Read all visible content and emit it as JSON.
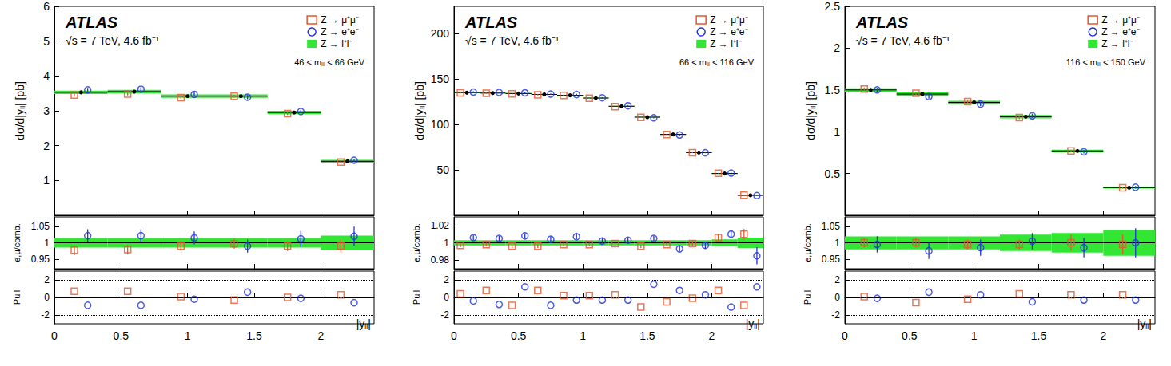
{
  "chart_data": [
    {
      "type": "scatter",
      "title": "ATLAS",
      "subtitle": "√s = 7 TeV, 4.6 fb⁻¹",
      "annotations": [
        "46 < mₗₗ < 66 GeV"
      ],
      "ylabel": "dσ/d|yₗₗ| [pb]",
      "legend": "upper right",
      "tick_labels": "y",
      "grid": false,
      "xlim": [
        0,
        2.4
      ],
      "xticks": [
        0,
        0.5,
        1,
        1.5,
        2
      ],
      "ylim": [
        0,
        6
      ],
      "yticks": [
        1,
        2,
        3,
        4,
        5,
        6
      ],
      "series": [
        {
          "name": "Z → μ⁺μ⁻",
          "color": "#e4572e",
          "marker": "square",
          "x": [
            0.15,
            0.55,
            0.95,
            1.35,
            1.75,
            2.15
          ],
          "values": [
            3.45,
            3.48,
            3.38,
            3.42,
            2.92,
            1.53
          ],
          "errors": [
            0.04,
            0.04,
            0.04,
            0.04,
            0.04,
            0.03
          ]
        },
        {
          "name": "Z → e⁺e⁻",
          "color": "#2233dd",
          "marker": "circle",
          "x": [
            0.25,
            0.65,
            1.05,
            1.45,
            1.85,
            2.25
          ],
          "values": [
            3.6,
            3.62,
            3.47,
            3.39,
            2.98,
            1.58
          ],
          "errors": [
            0.06,
            0.06,
            0.06,
            0.06,
            0.05,
            0.04
          ]
        },
        {
          "name": "Z → l⁺l⁻",
          "color": "#33e633",
          "marker": "dot",
          "bins": [
            0,
            0.4,
            0.8,
            1.2,
            1.6,
            2.0,
            2.4
          ],
          "values": [
            3.53,
            3.55,
            3.42,
            3.42,
            2.95,
            1.55
          ],
          "errors": [
            0.05,
            0.05,
            0.05,
            0.05,
            0.05,
            0.04
          ]
        }
      ]
    },
    {
      "type": "scatter",
      "ylabel": "e,μ/comb.",
      "tick_labels": "y",
      "grid": false,
      "xlim": [
        0,
        2.4
      ],
      "xticks": [
        0,
        0.5,
        1,
        1.5,
        2
      ],
      "ylim": [
        0.92,
        1.08
      ],
      "yticks": [
        0.95,
        1,
        1.05
      ],
      "series": [
        {
          "name": "Z → l⁺l⁻",
          "color": "#33e633",
          "marker": "band",
          "bins": [
            0,
            0.4,
            0.8,
            1.2,
            1.6,
            2.0,
            2.4
          ],
          "values": [
            1,
            1,
            1,
            1,
            1,
            1
          ],
          "errors": [
            0.015,
            0.015,
            0.015,
            0.015,
            0.015,
            0.022
          ]
        },
        {
          "name": "Z → μ⁺μ⁻",
          "color": "#e4572e",
          "marker": "square",
          "x": [
            0.15,
            0.55,
            0.95,
            1.35,
            1.75,
            2.15
          ],
          "values": [
            0.977,
            0.979,
            0.99,
            0.997,
            0.99,
            0.99
          ],
          "errors": [
            0.015,
            0.015,
            0.015,
            0.015,
            0.015,
            0.02
          ]
        },
        {
          "name": "Z → e⁺e⁻",
          "color": "#2233dd",
          "marker": "circle",
          "x": [
            0.25,
            0.65,
            1.05,
            1.45,
            1.85,
            2.25
          ],
          "values": [
            1.022,
            1.022,
            1.015,
            0.99,
            1.012,
            1.02
          ],
          "errors": [
            0.02,
            0.02,
            0.02,
            0.02,
            0.025,
            0.03
          ]
        }
      ]
    },
    {
      "type": "scatter",
      "ylabel": "Pull",
      "xlabel": "|yₗₗ|",
      "tick_labels": true,
      "grid": true,
      "xlim": [
        0,
        2.4
      ],
      "xticks": [
        0,
        0.5,
        1,
        1.5,
        2
      ],
      "ylim": [
        -3,
        3
      ],
      "yticks": [
        -2,
        0,
        2
      ],
      "series": [
        {
          "name": "Z → μ⁺μ⁻",
          "color": "#e4572e",
          "marker": "square",
          "x": [
            0.15,
            0.55,
            0.95,
            1.35,
            1.75,
            2.15
          ],
          "values": [
            0.7,
            0.7,
            0.1,
            -0.3,
            0.0,
            0.3
          ]
        },
        {
          "name": "Z → e⁺e⁻",
          "color": "#2233dd",
          "marker": "circle",
          "x": [
            0.25,
            0.65,
            1.05,
            1.45,
            1.85,
            2.25
          ],
          "values": [
            -0.9,
            -0.9,
            -0.2,
            0.6,
            -0.1,
            -0.6
          ]
        }
      ]
    },
    {
      "type": "scatter",
      "title": "ATLAS",
      "subtitle": "√s = 7 TeV, 4.6 fb⁻¹",
      "annotations": [
        "66 < mₗₗ < 116 GeV"
      ],
      "ylabel": "dσ/d|yₗₗ| [pb]",
      "legend": "upper right",
      "tick_labels": "y",
      "grid": false,
      "xlim": [
        0,
        2.4
      ],
      "xticks": [
        0,
        0.5,
        1,
        1.5,
        2
      ],
      "ylim": [
        0,
        230
      ],
      "yticks": [
        50,
        100,
        150,
        200
      ],
      "series": [
        {
          "name": "Z → μ⁺μ⁻",
          "color": "#e4572e",
          "marker": "square",
          "x": [
            0.05,
            0.25,
            0.45,
            0.65,
            0.85,
            1.05,
            1.25,
            1.45,
            1.65,
            1.85,
            2.05,
            2.25
          ],
          "values": [
            134.7,
            134.3,
            133.6,
            132.6,
            131.8,
            128.8,
            119.6,
            107.8,
            88.9,
            68.9,
            46.3,
            22.2
          ],
          "errors": [
            0.7,
            0.7,
            0.7,
            0.7,
            0.7,
            0.7,
            0.6,
            0.6,
            0.5,
            0.4,
            0.3,
            0.3
          ]
        },
        {
          "name": "Z → e⁺e⁻",
          "color": "#2233dd",
          "marker": "circle",
          "x": [
            0.15,
            0.35,
            0.55,
            0.75,
            0.95,
            1.15,
            1.35,
            1.55,
            1.75,
            1.95,
            2.15,
            2.35
          ],
          "values": [
            135.6,
            135.2,
            134.8,
            133.4,
            132.9,
            129.3,
            120.5,
            107.3,
            88.4,
            68.8,
            46.5,
            21.7
          ],
          "errors": [
            0.8,
            0.8,
            0.8,
            0.8,
            0.8,
            0.8,
            0.7,
            0.7,
            0.6,
            0.5,
            0.4,
            0.3
          ]
        },
        {
          "name": "Z → l⁺l⁻",
          "color": "#33e633",
          "marker": "dot",
          "bins": [
            0,
            0.2,
            0.4,
            0.6,
            0.8,
            1.0,
            1.2,
            1.4,
            1.6,
            1.8,
            2.0,
            2.2,
            2.4
          ],
          "values": [
            135,
            134.5,
            134,
            133,
            132,
            129,
            120,
            108,
            89,
            69,
            46,
            22
          ],
          "errors": [
            0.5,
            0.5,
            0.5,
            0.5,
            0.5,
            0.5,
            0.5,
            0.4,
            0.4,
            0.3,
            0.3,
            0.2
          ]
        }
      ]
    },
    {
      "type": "scatter",
      "ylabel": "e,μ/comb.",
      "tick_labels": "y",
      "grid": false,
      "xlim": [
        0,
        2.4
      ],
      "xticks": [
        0,
        0.5,
        1,
        1.5,
        2
      ],
      "ylim": [
        0.97,
        1.03
      ],
      "yticks": [
        0.98,
        1,
        1.02
      ],
      "series": [
        {
          "name": "Z → l⁺l⁻",
          "color": "#33e633",
          "marker": "band",
          "bins": [
            0,
            0.2,
            0.4,
            0.6,
            0.8,
            1.0,
            1.2,
            1.4,
            1.6,
            1.8,
            2.0,
            2.2,
            2.4
          ],
          "values": [
            1,
            1,
            1,
            1,
            1,
            1,
            1,
            1,
            1,
            1,
            1,
            1
          ],
          "errors": [
            0.003,
            0.003,
            0.003,
            0.003,
            0.003,
            0.003,
            0.003,
            0.003,
            0.003,
            0.003,
            0.004,
            0.006
          ]
        },
        {
          "name": "Z → μ⁺μ⁻",
          "color": "#e4572e",
          "marker": "square",
          "x": [
            0.05,
            0.25,
            0.45,
            0.65,
            0.85,
            1.05,
            1.25,
            1.45,
            1.65,
            1.85,
            2.05,
            2.25
          ],
          "values": [
            0.997,
            0.998,
            0.996,
            0.996,
            0.998,
            0.998,
            0.999,
            0.996,
            0.998,
            0.999,
            1.006,
            1.01
          ],
          "errors": [
            0.002,
            0.002,
            0.002,
            0.002,
            0.002,
            0.002,
            0.002,
            0.002,
            0.002,
            0.003,
            0.004,
            0.006
          ]
        },
        {
          "name": "Z → e⁺e⁻",
          "color": "#2233dd",
          "marker": "circle",
          "x": [
            0.15,
            0.35,
            0.55,
            0.75,
            0.95,
            1.15,
            1.35,
            1.55,
            1.75,
            1.95,
            2.15,
            2.35
          ],
          "values": [
            1.006,
            1.005,
            1.008,
            1.004,
            1.007,
            1.002,
            1.003,
            1.005,
            0.993,
            0.997,
            1.01,
            0.985
          ],
          "errors": [
            0.003,
            0.003,
            0.003,
            0.003,
            0.003,
            0.003,
            0.003,
            0.003,
            0.003,
            0.004,
            0.005,
            0.01
          ]
        }
      ]
    },
    {
      "type": "scatter",
      "ylabel": "Pull",
      "xlabel": "|yₗₗ|",
      "tick_labels": true,
      "grid": true,
      "xlim": [
        0,
        2.4
      ],
      "xticks": [
        0,
        0.5,
        1,
        1.5,
        2
      ],
      "ylim": [
        -3,
        3
      ],
      "yticks": [
        -2,
        0,
        2
      ],
      "series": [
        {
          "name": "Z → μ⁺μ⁻",
          "color": "#e4572e",
          "marker": "square",
          "x": [
            0.05,
            0.25,
            0.45,
            0.65,
            0.85,
            1.05,
            1.25,
            1.45,
            1.65,
            1.85,
            2.05,
            2.25
          ],
          "values": [
            0.4,
            0.8,
            -0.9,
            0.8,
            0.2,
            0.2,
            0.3,
            -1.1,
            -0.5,
            -0.1,
            0.8,
            -0.9
          ]
        },
        {
          "name": "Z → e⁺e⁻",
          "color": "#2233dd",
          "marker": "circle",
          "x": [
            0.15,
            0.35,
            0.55,
            0.75,
            0.95,
            1.15,
            1.35,
            1.55,
            1.75,
            1.95,
            2.15,
            2.35
          ],
          "values": [
            -0.4,
            -0.8,
            1.2,
            -0.9,
            -0.3,
            -0.3,
            -0.3,
            1.5,
            0.8,
            0.3,
            -1.1,
            1.2
          ]
        }
      ]
    },
    {
      "type": "scatter",
      "title": "ATLAS",
      "subtitle": "√s = 7 TeV, 4.6 fb⁻¹",
      "annotations": [
        "116 < mₗₗ < 150 GeV"
      ],
      "ylabel": "dσ/d|yₗₗ| [pb]",
      "legend": "upper right",
      "tick_labels": "y",
      "grid": false,
      "xlim": [
        0,
        2.4
      ],
      "xticks": [
        0,
        0.5,
        1,
        1.5,
        2
      ],
      "ylim": [
        0,
        2.5
      ],
      "yticks": [
        0.5,
        1,
        1.5,
        2,
        2.5
      ],
      "series": [
        {
          "name": "Z → μ⁺μ⁻",
          "color": "#e4572e",
          "marker": "square",
          "x": [
            0.15,
            0.55,
            0.95,
            1.35,
            1.75,
            2.15
          ],
          "values": [
            1.51,
            1.46,
            1.36,
            1.17,
            0.77,
            0.33
          ],
          "errors": [
            0.02,
            0.02,
            0.02,
            0.02,
            0.015,
            0.01
          ]
        },
        {
          "name": "Z → e⁺e⁻",
          "color": "#2233dd",
          "marker": "circle",
          "x": [
            0.25,
            0.65,
            1.05,
            1.45,
            1.85,
            2.25
          ],
          "values": [
            1.5,
            1.42,
            1.33,
            1.19,
            0.76,
            0.335
          ],
          "errors": [
            0.025,
            0.025,
            0.025,
            0.025,
            0.02,
            0.015
          ]
        },
        {
          "name": "Z → l⁺l⁻",
          "color": "#33e633",
          "marker": "dot",
          "bins": [
            0,
            0.4,
            0.8,
            1.2,
            1.6,
            2.0,
            2.4
          ],
          "values": [
            1.5,
            1.45,
            1.35,
            1.18,
            0.77,
            0.33
          ],
          "errors": [
            0.02,
            0.02,
            0.02,
            0.02,
            0.015,
            0.01
          ]
        }
      ]
    },
    {
      "type": "scatter",
      "ylabel": "e,μ/comb.",
      "tick_labels": "y",
      "grid": false,
      "xlim": [
        0,
        2.4
      ],
      "xticks": [
        0,
        0.5,
        1,
        1.5,
        2
      ],
      "ylim": [
        0.92,
        1.08
      ],
      "yticks": [
        0.95,
        1,
        1.05
      ],
      "series": [
        {
          "name": "Z → l⁺l⁻",
          "color": "#33e633",
          "marker": "band",
          "bins": [
            0,
            0.4,
            0.8,
            1.2,
            1.6,
            2.0,
            2.4
          ],
          "values": [
            1,
            1,
            1,
            1,
            1,
            1
          ],
          "errors": [
            0.02,
            0.02,
            0.02,
            0.025,
            0.03,
            0.04
          ]
        },
        {
          "name": "Z → μ⁺μ⁻",
          "color": "#e4572e",
          "marker": "square",
          "x": [
            0.15,
            0.55,
            0.95,
            1.35,
            1.75,
            2.15
          ],
          "values": [
            1.0,
            1.0,
            0.995,
            0.995,
            1.0,
            0.995
          ],
          "errors": [
            0.015,
            0.015,
            0.015,
            0.015,
            0.025,
            0.03
          ]
        },
        {
          "name": "Z → e⁺e⁻",
          "color": "#2233dd",
          "marker": "circle",
          "x": [
            0.25,
            0.65,
            1.05,
            1.45,
            1.85,
            2.25
          ],
          "values": [
            0.995,
            0.975,
            0.985,
            1.005,
            0.985,
            1.0
          ],
          "errors": [
            0.025,
            0.025,
            0.025,
            0.025,
            0.03,
            0.045
          ]
        }
      ]
    },
    {
      "type": "scatter",
      "ylabel": "Pull",
      "xlabel": "|yₗₗ|",
      "tick_labels": true,
      "grid": true,
      "xlim": [
        0,
        2.4
      ],
      "xticks": [
        0,
        0.5,
        1,
        1.5,
        2
      ],
      "ylim": [
        -3,
        3
      ],
      "yticks": [
        -2,
        0,
        2
      ],
      "series": [
        {
          "name": "Z → μ⁺μ⁻",
          "color": "#e4572e",
          "marker": "square",
          "x": [
            0.15,
            0.55,
            0.95,
            1.35,
            1.75,
            2.15
          ],
          "values": [
            0.1,
            -0.6,
            -0.2,
            0.4,
            0.3,
            0.3
          ]
        },
        {
          "name": "Z → e⁺e⁻",
          "color": "#2233dd",
          "marker": "circle",
          "x": [
            0.25,
            0.65,
            1.05,
            1.45,
            1.85,
            2.25
          ],
          "values": [
            -0.1,
            0.6,
            0.3,
            -0.5,
            -0.3,
            -0.3
          ]
        }
      ]
    }
  ]
}
